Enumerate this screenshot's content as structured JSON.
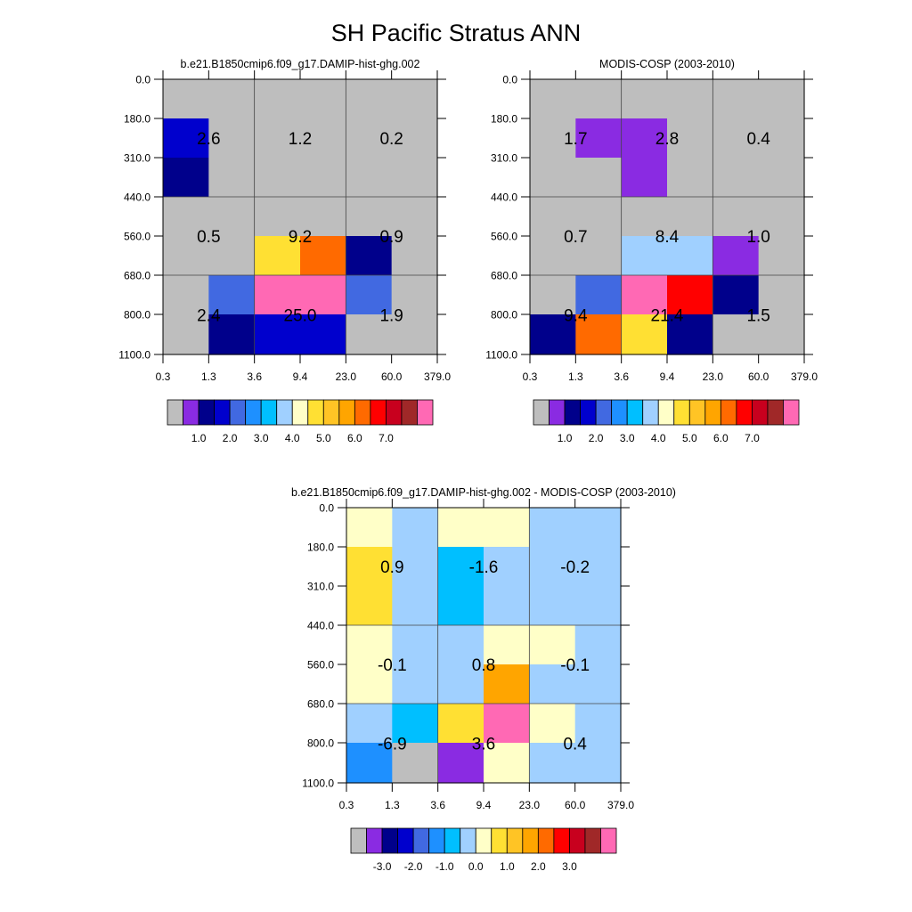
{
  "title": "SH Pacific Stratus ANN",
  "chart_data": [
    {
      "type": "heatmap",
      "title": "b.e21.B1850cmip6.f09_g17.DAMIP-hist-ghg.002",
      "x_ticks": [
        "0.3",
        "1.3",
        "3.6",
        "9.4",
        "23.0",
        "60.0",
        "379.0"
      ],
      "y_ticks": [
        "0.0",
        "180.0",
        "310.0",
        "440.0",
        "560.0",
        "680.0",
        "800.0",
        "1100.0"
      ],
      "cell_levels": [
        [
          0,
          0,
          0,
          0,
          0,
          0
        ],
        [
          3,
          0,
          0,
          0,
          0,
          0
        ],
        [
          2,
          0,
          0,
          0,
          0,
          0
        ],
        [
          0,
          0,
          0,
          0,
          0,
          0
        ],
        [
          0,
          0,
          9,
          12,
          2,
          0
        ],
        [
          0,
          4,
          16,
          16,
          4,
          0
        ],
        [
          0,
          2,
          3,
          3,
          0,
          0
        ]
      ],
      "group_values": [
        [
          "2.6",
          "1.2",
          "0.2"
        ],
        [
          "0.5",
          "9.2",
          "0.9"
        ],
        [
          "2.4",
          "25.0",
          "1.9"
        ]
      ],
      "colorbar": {
        "colors": [
          "#bebebe",
          "#8a2be2",
          "#00008b",
          "#0000cd",
          "#4169e1",
          "#1e90ff",
          "#00bfff",
          "#a0d0ff",
          "#ffffc8",
          "#ffe033",
          "#ffc425",
          "#ffa500",
          "#ff6a00",
          "#ff0000",
          "#c8001e",
          "#a02828",
          "#ff69b4"
        ],
        "labels": [
          "1.0",
          "2.0",
          "3.0",
          "4.0",
          "5.0",
          "6.0",
          "7.0"
        ]
      }
    },
    {
      "type": "heatmap",
      "title": "MODIS-COSP (2003-2010)",
      "x_ticks": [
        "0.3",
        "1.3",
        "3.6",
        "9.4",
        "23.0",
        "60.0",
        "379.0"
      ],
      "y_ticks": [
        "0.0",
        "180.0",
        "310.0",
        "440.0",
        "560.0",
        "680.0",
        "800.0",
        "1100.0"
      ],
      "cell_levels": [
        [
          0,
          0,
          0,
          0,
          0,
          0
        ],
        [
          0,
          1,
          1,
          0,
          0,
          0
        ],
        [
          0,
          0,
          1,
          0,
          0,
          0
        ],
        [
          0,
          0,
          0,
          0,
          0,
          0
        ],
        [
          0,
          0,
          7,
          7,
          1,
          0
        ],
        [
          0,
          4,
          16,
          13,
          2,
          0
        ],
        [
          2,
          12,
          9,
          2,
          0,
          0
        ]
      ],
      "group_values": [
        [
          "1.7",
          "2.8",
          "0.4"
        ],
        [
          "0.7",
          "8.4",
          "1.0"
        ],
        [
          "9.4",
          "21.4",
          "1.5"
        ]
      ],
      "colorbar": {
        "colors": [
          "#bebebe",
          "#8a2be2",
          "#00008b",
          "#0000cd",
          "#4169e1",
          "#1e90ff",
          "#00bfff",
          "#a0d0ff",
          "#ffffc8",
          "#ffe033",
          "#ffc425",
          "#ffa500",
          "#ff6a00",
          "#ff0000",
          "#c8001e",
          "#a02828",
          "#ff69b4"
        ],
        "labels": [
          "1.0",
          "2.0",
          "3.0",
          "4.0",
          "5.0",
          "6.0",
          "7.0"
        ]
      }
    },
    {
      "type": "heatmap",
      "title": "b.e21.B1850cmip6.f09_g17.DAMIP-hist-ghg.002 - MODIS-COSP (2003-2010)",
      "x_ticks": [
        "0.3",
        "1.3",
        "3.6",
        "9.4",
        "23.0",
        "60.0",
        "379.0"
      ],
      "y_ticks": [
        "0.0",
        "180.0",
        "310.0",
        "440.0",
        "560.0",
        "680.0",
        "800.0",
        "1100.0"
      ],
      "cell_levels": [
        [
          8,
          7,
          8,
          8,
          7,
          7
        ],
        [
          9,
          7,
          6,
          7,
          7,
          7
        ],
        [
          9,
          7,
          6,
          7,
          7,
          7
        ],
        [
          8,
          7,
          7,
          8,
          8,
          7
        ],
        [
          8,
          7,
          7,
          11,
          7,
          7
        ],
        [
          7,
          6,
          9,
          16,
          8,
          7
        ],
        [
          5,
          0,
          1,
          8,
          7,
          7
        ]
      ],
      "group_values": [
        [
          "0.9",
          "-1.6",
          "-0.2"
        ],
        [
          "-0.1",
          "0.8",
          "-0.1"
        ],
        [
          "-6.9",
          "3.6",
          "0.4"
        ]
      ],
      "colorbar": {
        "colors": [
          "#bebebe",
          "#8a2be2",
          "#00008b",
          "#0000cd",
          "#4169e1",
          "#1e90ff",
          "#00bfff",
          "#a0d0ff",
          "#ffffc8",
          "#ffe033",
          "#ffc425",
          "#ffa500",
          "#ff6a00",
          "#ff0000",
          "#c8001e",
          "#a02828",
          "#ff69b4"
        ],
        "labels": [
          "-3.0",
          "-2.0",
          "-1.0",
          "0.0",
          "1.0",
          "2.0",
          "3.0"
        ]
      }
    }
  ]
}
